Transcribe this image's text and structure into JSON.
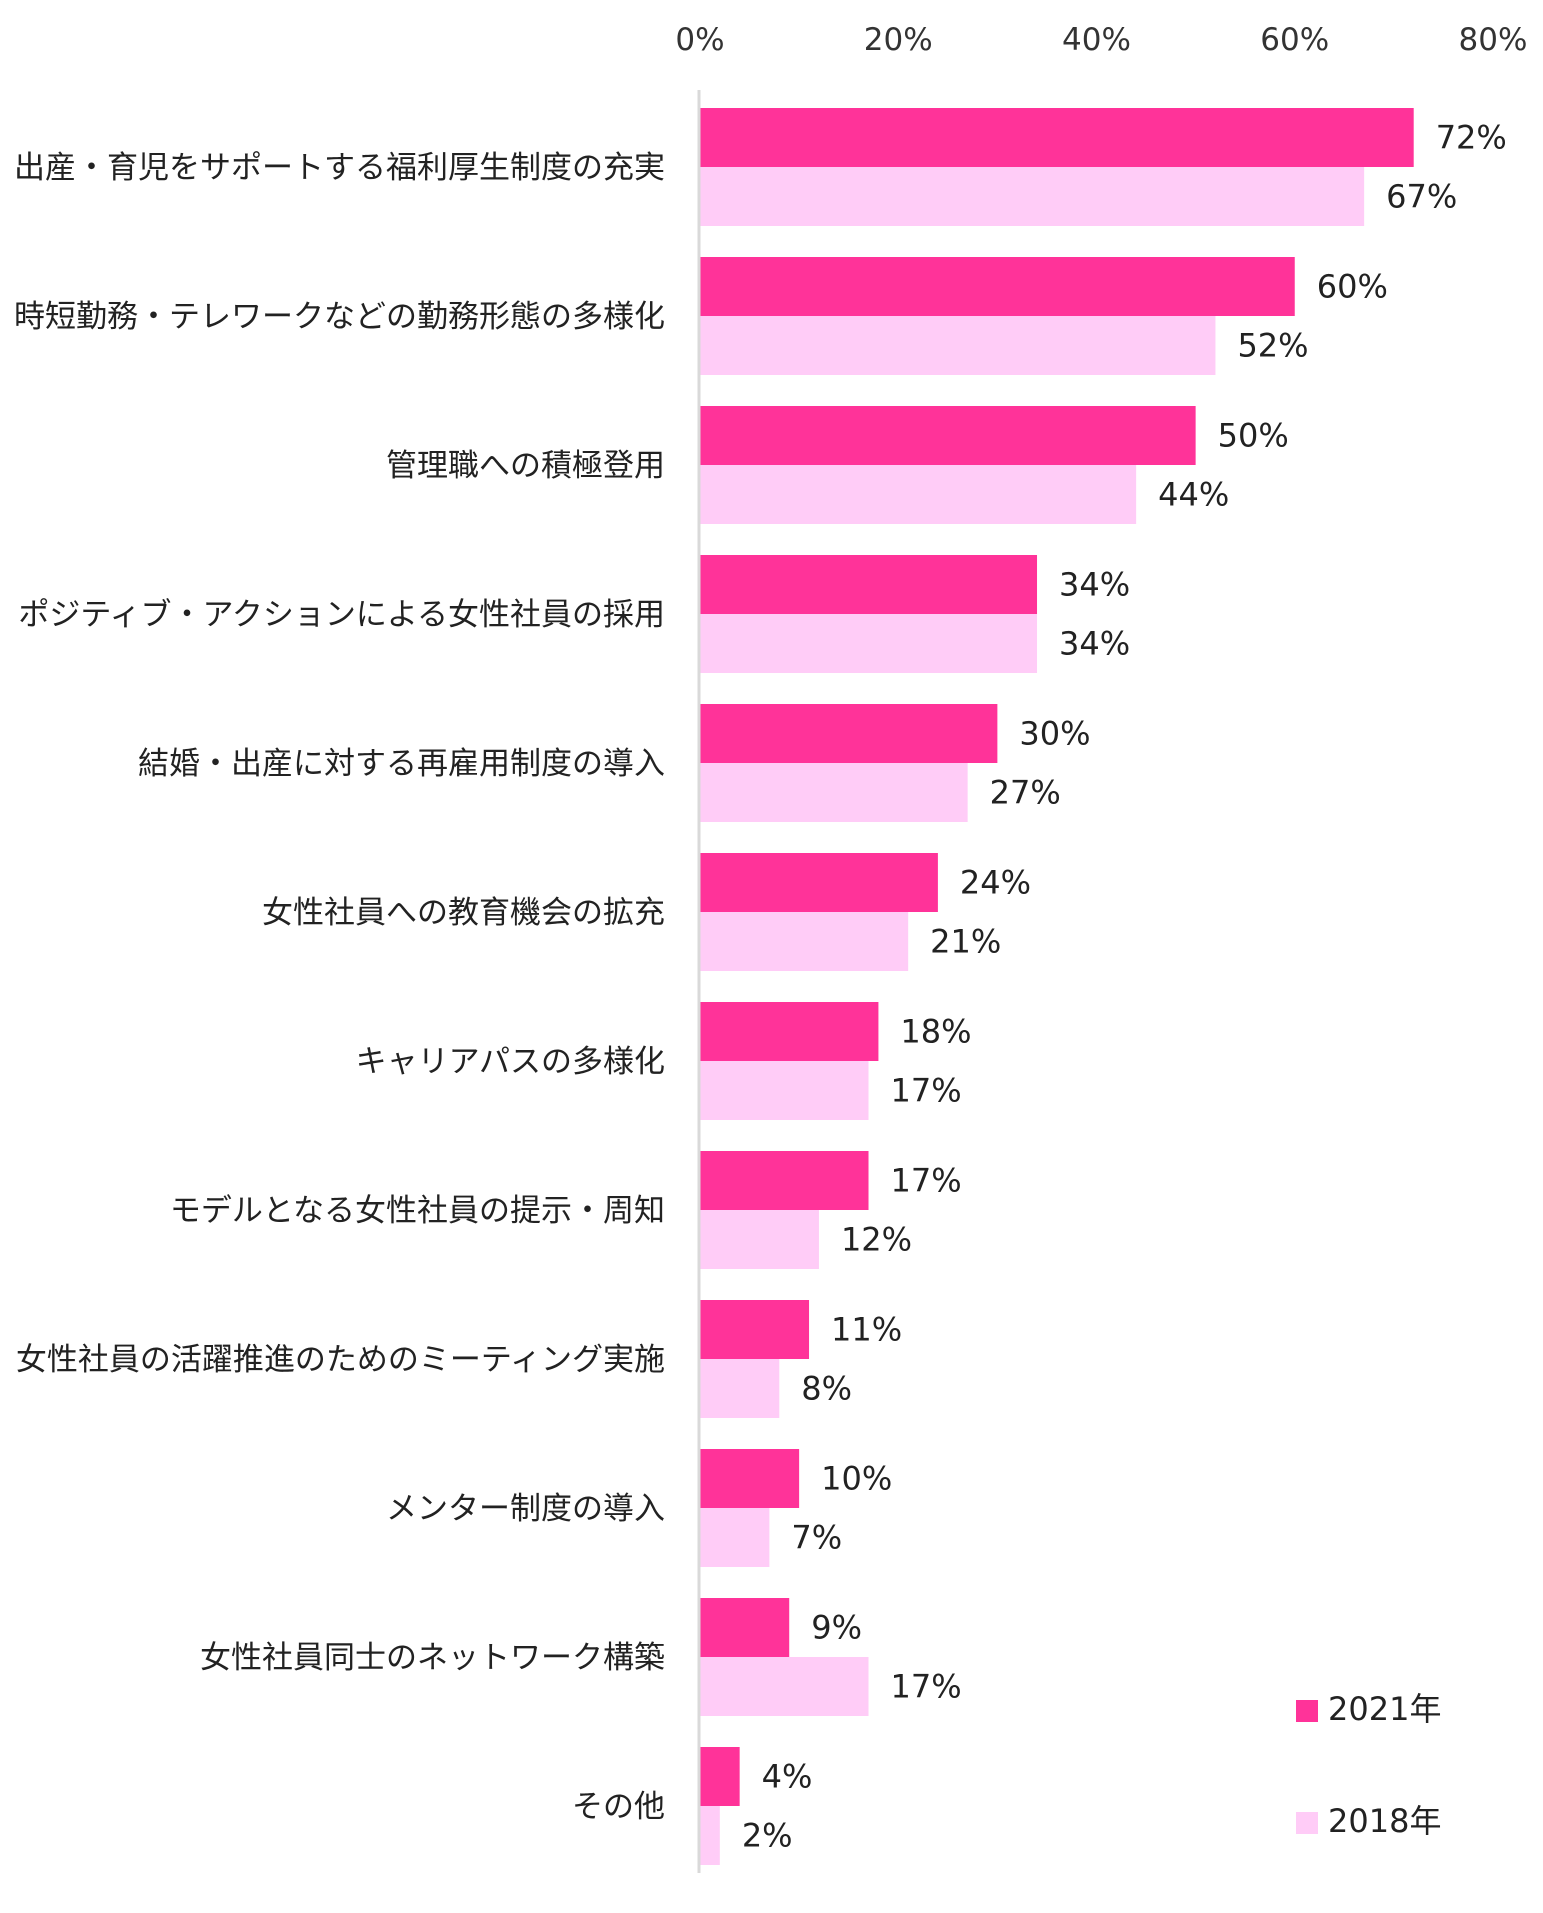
{
  "chart_data": {
    "type": "bar",
    "orientation": "horizontal",
    "title": "",
    "xlabel": "",
    "ylabel": "",
    "xlim": [
      0,
      80
    ],
    "x_ticks": [
      0,
      20,
      40,
      60,
      80
    ],
    "x_tick_labels": [
      "0%",
      "20%",
      "40%",
      "60%",
      "80%"
    ],
    "x_axis_position": "top",
    "grid": false,
    "legend_position": "bottom-right",
    "categories": [
      "出産・育児をサポートする福利厚生制度の充実",
      "時短勤務・テレワークなどの勤務形態の多様化",
      "管理職への積極登用",
      "ポジティブ・アクションによる女性社員の採用",
      "結婚・出産に対する再雇用制度の導入",
      "女性社員への教育機会の拡充",
      "キャリアパスの多様化",
      "モデルとなる女性社員の提示・周知",
      "女性社員の活躍推進のためのミーティング実施",
      "メンター制度の導入",
      "女性社員同士のネットワーク構築",
      "その他"
    ],
    "series": [
      {
        "name": "2021年",
        "color": "#FF3399",
        "values": [
          72,
          60,
          50,
          34,
          30,
          24,
          18,
          17,
          11,
          10,
          9,
          4
        ],
        "labels": [
          "72%",
          "60%",
          "50%",
          "34%",
          "30%",
          "24%",
          "18%",
          "17%",
          "11%",
          "10%",
          "9%",
          "4%"
        ]
      },
      {
        "name": "2018年",
        "color": "#FFCCF7",
        "values": [
          67,
          52,
          44,
          34,
          27,
          21,
          17,
          12,
          8,
          7,
          17,
          2
        ],
        "labels": [
          "67%",
          "52%",
          "44%",
          "34%",
          "27%",
          "21%",
          "17%",
          "12%",
          "8%",
          "7%",
          "17%",
          "2%"
        ]
      }
    ],
    "axis_color": "#D9D9D9"
  }
}
